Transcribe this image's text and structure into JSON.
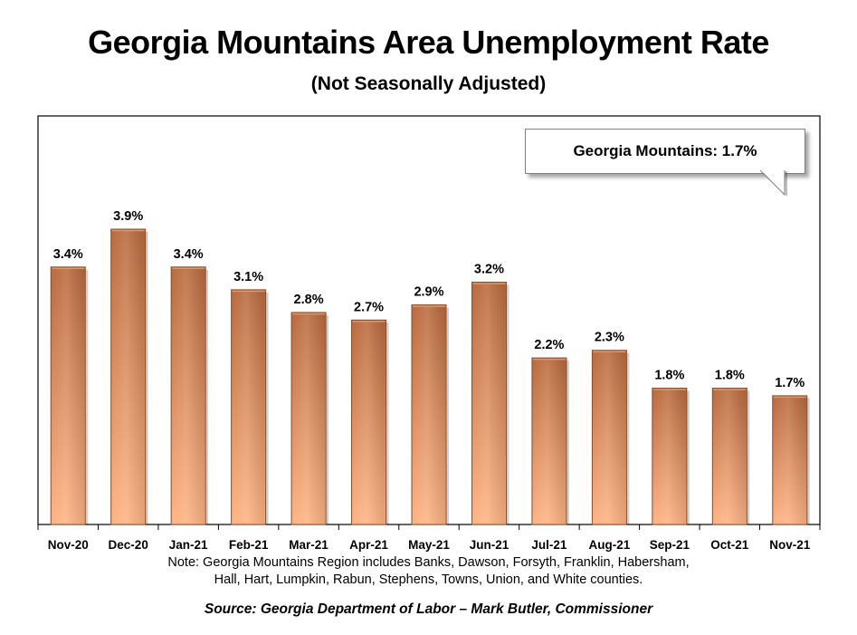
{
  "chart_data": {
    "type": "bar",
    "title": "Georgia Mountains Area Unemployment Rate",
    "subtitle": "(Not Seasonally Adjusted)",
    "categories": [
      "Nov-20",
      "Dec-20",
      "Jan-21",
      "Feb-21",
      "Mar-21",
      "Apr-21",
      "May-21",
      "Jun-21",
      "Jul-21",
      "Aug-21",
      "Sep-21",
      "Oct-21",
      "Nov-21"
    ],
    "values": [
      3.4,
      3.9,
      3.4,
      3.1,
      2.8,
      2.7,
      2.9,
      3.2,
      2.2,
      2.3,
      1.8,
      1.8,
      1.7
    ],
    "value_labels": [
      "3.4%",
      "3.9%",
      "3.4%",
      "3.1%",
      "2.8%",
      "2.7%",
      "2.9%",
      "3.2%",
      "2.2%",
      "2.3%",
      "1.8%",
      "1.8%",
      "1.7%"
    ],
    "xlabel": "",
    "ylabel": "",
    "ylim": [
      0,
      3.9
    ],
    "grid": false,
    "legend": "none",
    "bar_colors": {
      "top": "#b96a3e",
      "bottom": "#ffb485",
      "edge": "#8a4a27"
    }
  },
  "callout": {
    "text": "Georgia Mountains: 1.7%",
    "placement": "top-right"
  },
  "note": {
    "line1": "Note: Georgia Mountains Region includes Banks, Dawson, Forsyth, Franklin, Habersham,",
    "line2": "Hall, Hart, Lumpkin, Rabun, Stephens, Towns, Union, and White counties."
  },
  "source": "Source:  Georgia Department of Labor – Mark Butler, Commissioner"
}
